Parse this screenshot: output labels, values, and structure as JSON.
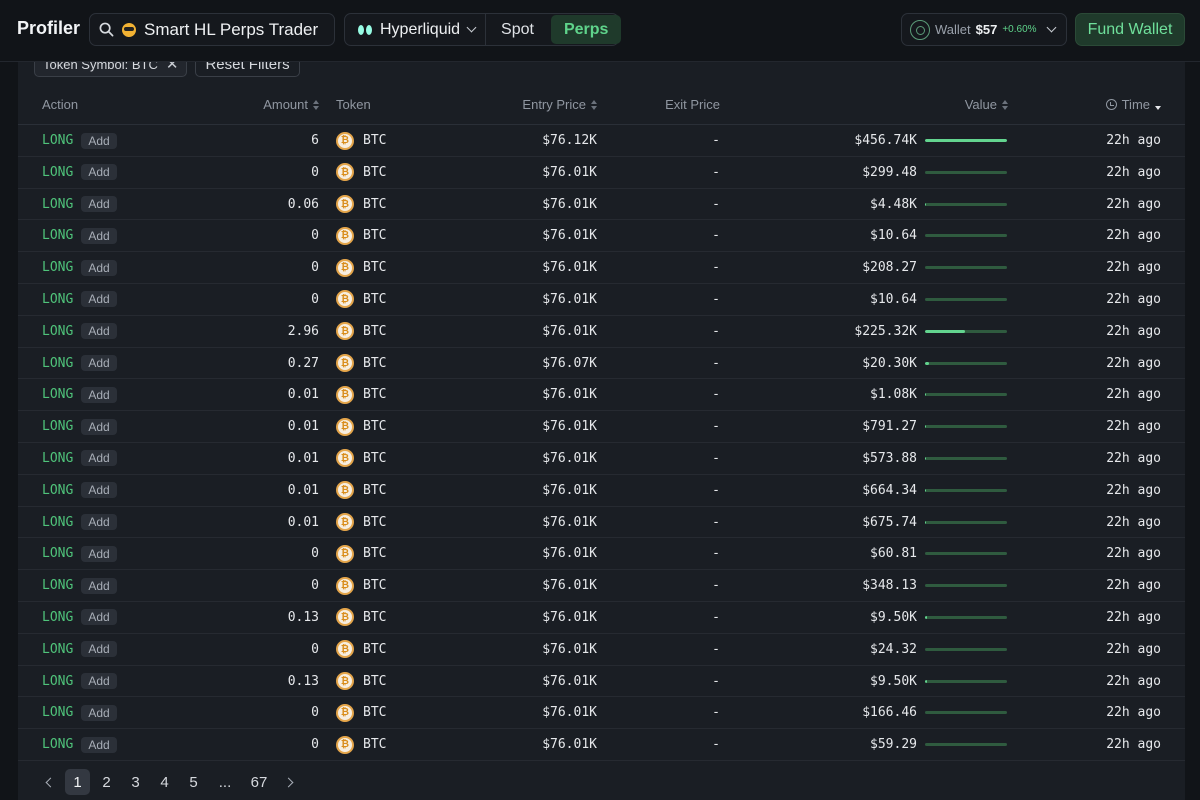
{
  "header": {
    "brand": "Profiler",
    "search_label": "Smart HL Perps Trader",
    "chain_label": "Hyperliquid",
    "tabs": [
      {
        "label": "Spot"
      },
      {
        "label": "Perps"
      }
    ],
    "wallet": {
      "label": "Wallet",
      "amount": "$57",
      "change": "+0.60%"
    },
    "fund_label": "Fund Wallet"
  },
  "filters": {
    "chip_label": "Token Symbol: BTC",
    "reset_label": "Reset Filters"
  },
  "columns": {
    "action": "Action",
    "amount": "Amount",
    "token": "Token",
    "entry": "Entry Price",
    "exit": "Exit Price",
    "value": "Value",
    "time": "Time"
  },
  "rows": [
    {
      "action": "LONG",
      "type": "Add",
      "amount": "6",
      "token": "BTC",
      "entry": "$76.12K",
      "exit": "-",
      "value": "$456.74K",
      "share": 1.0,
      "time": "22h ago"
    },
    {
      "action": "LONG",
      "type": "Add",
      "amount": "0",
      "token": "BTC",
      "entry": "$76.01K",
      "exit": "-",
      "value": "$299.48",
      "share": 0.0007,
      "time": "22h ago"
    },
    {
      "action": "LONG",
      "type": "Add",
      "amount": "0.06",
      "token": "BTC",
      "entry": "$76.01K",
      "exit": "-",
      "value": "$4.48K",
      "share": 0.0098,
      "time": "22h ago"
    },
    {
      "action": "LONG",
      "type": "Add",
      "amount": "0",
      "token": "BTC",
      "entry": "$76.01K",
      "exit": "-",
      "value": "$10.64",
      "share": 2e-05,
      "time": "22h ago"
    },
    {
      "action": "LONG",
      "type": "Add",
      "amount": "0",
      "token": "BTC",
      "entry": "$76.01K",
      "exit": "-",
      "value": "$208.27",
      "share": 0.0005,
      "time": "22h ago"
    },
    {
      "action": "LONG",
      "type": "Add",
      "amount": "0",
      "token": "BTC",
      "entry": "$76.01K",
      "exit": "-",
      "value": "$10.64",
      "share": 2e-05,
      "time": "22h ago"
    },
    {
      "action": "LONG",
      "type": "Add",
      "amount": "2.96",
      "token": "BTC",
      "entry": "$76.01K",
      "exit": "-",
      "value": "$225.32K",
      "share": 0.493,
      "time": "22h ago"
    },
    {
      "action": "LONG",
      "type": "Add",
      "amount": "0.27",
      "token": "BTC",
      "entry": "$76.07K",
      "exit": "-",
      "value": "$20.30K",
      "share": 0.044,
      "time": "22h ago"
    },
    {
      "action": "LONG",
      "type": "Add",
      "amount": "0.01",
      "token": "BTC",
      "entry": "$76.01K",
      "exit": "-",
      "value": "$1.08K",
      "share": 0.0024,
      "time": "22h ago"
    },
    {
      "action": "LONG",
      "type": "Add",
      "amount": "0.01",
      "token": "BTC",
      "entry": "$76.01K",
      "exit": "-",
      "value": "$791.27",
      "share": 0.0017,
      "time": "22h ago"
    },
    {
      "action": "LONG",
      "type": "Add",
      "amount": "0.01",
      "token": "BTC",
      "entry": "$76.01K",
      "exit": "-",
      "value": "$573.88",
      "share": 0.0013,
      "time": "22h ago"
    },
    {
      "action": "LONG",
      "type": "Add",
      "amount": "0.01",
      "token": "BTC",
      "entry": "$76.01K",
      "exit": "-",
      "value": "$664.34",
      "share": 0.0015,
      "time": "22h ago"
    },
    {
      "action": "LONG",
      "type": "Add",
      "amount": "0.01",
      "token": "BTC",
      "entry": "$76.01K",
      "exit": "-",
      "value": "$675.74",
      "share": 0.0015,
      "time": "22h ago"
    },
    {
      "action": "LONG",
      "type": "Add",
      "amount": "0",
      "token": "BTC",
      "entry": "$76.01K",
      "exit": "-",
      "value": "$60.81",
      "share": 0.0001,
      "time": "22h ago"
    },
    {
      "action": "LONG",
      "type": "Add",
      "amount": "0",
      "token": "BTC",
      "entry": "$76.01K",
      "exit": "-",
      "value": "$348.13",
      "share": 0.0008,
      "time": "22h ago"
    },
    {
      "action": "LONG",
      "type": "Add",
      "amount": "0.13",
      "token": "BTC",
      "entry": "$76.01K",
      "exit": "-",
      "value": "$9.50K",
      "share": 0.021,
      "time": "22h ago"
    },
    {
      "action": "LONG",
      "type": "Add",
      "amount": "0",
      "token": "BTC",
      "entry": "$76.01K",
      "exit": "-",
      "value": "$24.32",
      "share": 5e-05,
      "time": "22h ago"
    },
    {
      "action": "LONG",
      "type": "Add",
      "amount": "0.13",
      "token": "BTC",
      "entry": "$76.01K",
      "exit": "-",
      "value": "$9.50K",
      "share": 0.021,
      "time": "22h ago"
    },
    {
      "action": "LONG",
      "type": "Add",
      "amount": "0",
      "token": "BTC",
      "entry": "$76.01K",
      "exit": "-",
      "value": "$166.46",
      "share": 0.0004,
      "time": "22h ago"
    },
    {
      "action": "LONG",
      "type": "Add",
      "amount": "0",
      "token": "BTC",
      "entry": "$76.01K",
      "exit": "-",
      "value": "$59.29",
      "share": 0.0001,
      "time": "22h ago"
    }
  ],
  "pagination": {
    "pages": [
      "1",
      "2",
      "3",
      "4",
      "5",
      "...",
      "67"
    ],
    "current": "1"
  },
  "icons": {
    "search": "search-icon",
    "token": "bitcoin-icon",
    "chain": "hyperliquid-icon",
    "wallet": "wallet-icon",
    "time": "clock-icon",
    "close": "close-icon"
  },
  "colors": {
    "long": "#4fc37a",
    "accent": "#5fd48b",
    "accent_bg": "#1f3a2b",
    "bar_track": "#2f5b3f",
    "bar_fill": "#63d48f"
  }
}
